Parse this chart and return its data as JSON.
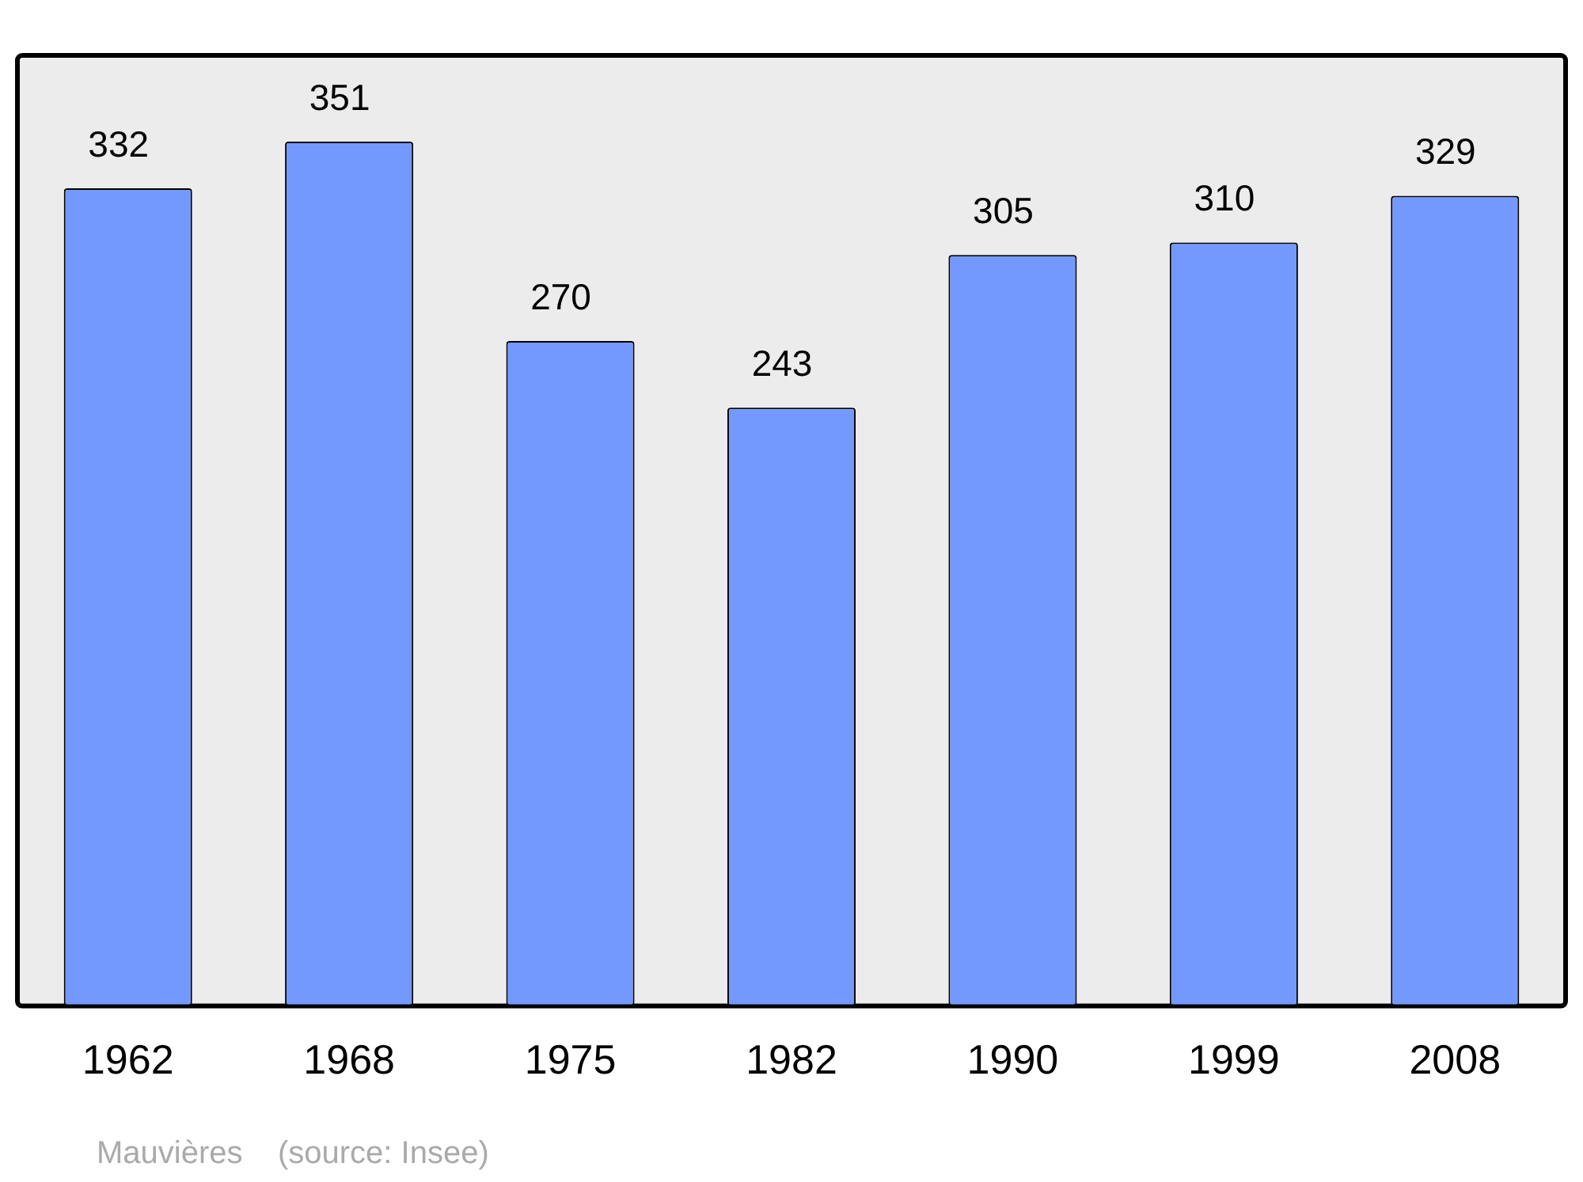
{
  "chart_data": {
    "type": "bar",
    "categories": [
      "1962",
      "1968",
      "1975",
      "1982",
      "1990",
      "1999",
      "2008"
    ],
    "values": [
      332,
      351,
      270,
      243,
      305,
      310,
      329
    ],
    "color": "#7399ff",
    "ylim": [
      0,
      386
    ],
    "tick_labels": "x",
    "grid": false,
    "legend": false,
    "data_labels": true,
    "annotations": [
      "Mauvières    (source: Insee)"
    ]
  }
}
